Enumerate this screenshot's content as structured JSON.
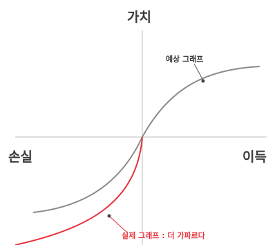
{
  "labels": {
    "y_axis": "가치",
    "x_left": "손실",
    "x_right": "이득"
  },
  "curves": {
    "expected": {
      "label": "예상 그래프",
      "color": "#8a8a8a"
    },
    "actual": {
      "label": "실제 그래프 : 더 가파르다",
      "color": "#e8323c"
    }
  },
  "colors": {
    "axis": "#d4d4d4",
    "text": "#3a3a3a",
    "marker": "#444444"
  }
}
